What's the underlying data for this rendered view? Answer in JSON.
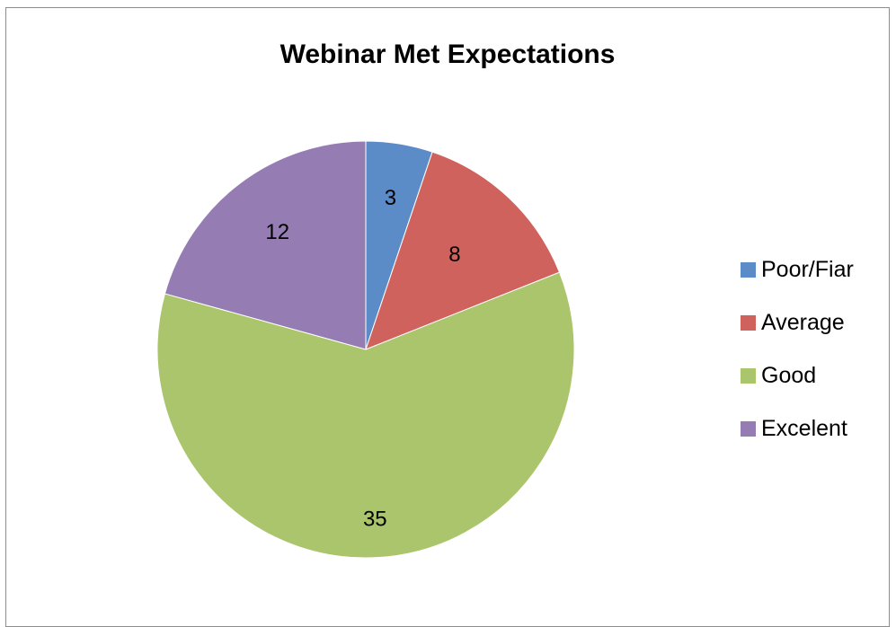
{
  "chart_data": {
    "type": "pie",
    "title": "Webinar Met Expectations",
    "categories": [
      "Poor/Fiar",
      "Average",
      "Good",
      "Excelent"
    ],
    "values": [
      3,
      8,
      35,
      12
    ],
    "colors": [
      "#5b8cc8",
      "#cf625d",
      "#abc56c",
      "#957db3"
    ],
    "data_labels": [
      "3",
      "8",
      "35",
      "12"
    ],
    "legend_placement": "right",
    "start_angle": "top, clockwise"
  }
}
